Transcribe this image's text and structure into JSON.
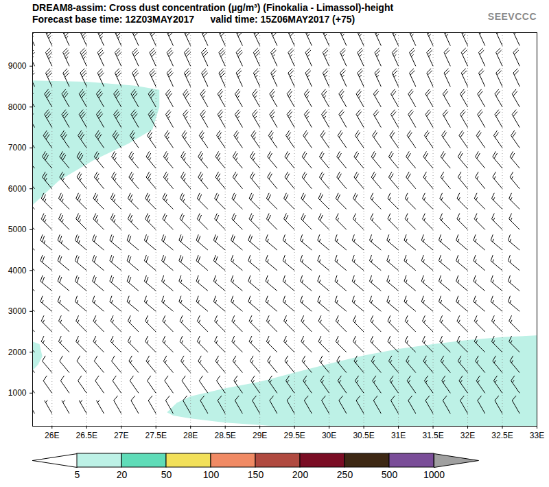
{
  "chart_data": {
    "type": "cross_section",
    "title": "DREAM8-assim: Cross dust concentration (µg/m³) (Finokalia - Limassol)-height",
    "subtitle": "Forecast base time: 12Z03MAY2017      valid time: 15Z06MAY2017 (+75)",
    "logo": "SEEVCCC",
    "xlim": [
      25.72,
      33
    ],
    "ylim": [
      190,
      9820
    ],
    "xticks": [
      {
        "value": 26,
        "label": "26E"
      },
      {
        "value": 26.5,
        "label": "26.5E"
      },
      {
        "value": 27,
        "label": "27E"
      },
      {
        "value": 27.5,
        "label": "27.5E"
      },
      {
        "value": 28,
        "label": "28E"
      },
      {
        "value": 28.5,
        "label": "28.5E"
      },
      {
        "value": 29,
        "label": "29E"
      },
      {
        "value": 29.5,
        "label": "29.5E"
      },
      {
        "value": 30,
        "label": "30E"
      },
      {
        "value": 30.5,
        "label": "30.5E"
      },
      {
        "value": 31,
        "label": "31E"
      },
      {
        "value": 31.5,
        "label": "31.5E"
      },
      {
        "value": 32,
        "label": "32E"
      },
      {
        "value": 32.5,
        "label": "32.5E"
      },
      {
        "value": 33,
        "label": "33E"
      }
    ],
    "yticks": [
      1000,
      2000,
      3000,
      4000,
      5000,
      6000,
      7000,
      8000,
      9000
    ],
    "grid": "x",
    "regions": [
      {
        "level": 5,
        "x": [
          25.6,
          26.5,
          27.2,
          27.55,
          27.55,
          27.45,
          27.1,
          26.6,
          26.1,
          25.72,
          25.6
        ],
        "y": [
          8650,
          8620,
          8520,
          8420,
          8000,
          7450,
          7100,
          6700,
          6200,
          5600,
          5450
        ]
      },
      {
        "level": 5,
        "x": [
          25.6,
          25.72,
          25.82,
          25.86,
          25.8,
          25.72,
          25.6
        ],
        "y": [
          2280,
          2260,
          2200,
          1900,
          1700,
          1550,
          1500
        ]
      },
      {
        "level": 5,
        "x": [
          27.66,
          27.8,
          28,
          28.5,
          29,
          29.5,
          30,
          30.5,
          31,
          31.5,
          32,
          32.5,
          33.1,
          33.1,
          29.5,
          29,
          28.5,
          28,
          27.75
        ],
        "y": [
          530,
          760,
          920,
          1120,
          1280,
          1500,
          1720,
          1920,
          2080,
          2200,
          2300,
          2370,
          2420,
          150,
          150,
          220,
          280,
          380,
          450
        ]
      }
    ],
    "wind": {
      "x": [
        25.75,
        26,
        26.25,
        26.5,
        26.75,
        27,
        27.25,
        27.5,
        27.75,
        28,
        28.25,
        28.5,
        28.75,
        29,
        29.25,
        29.5,
        29.75,
        30,
        30.25,
        30.5,
        30.75,
        31,
        31.25,
        31.5,
        31.75,
        32,
        32.25,
        32.5,
        32.75
      ],
      "heights": [
        500,
        1000,
        1500,
        2000,
        2500,
        3000,
        3500,
        4000,
        4500,
        5000,
        5500,
        6000,
        6500,
        7000,
        7500,
        8000,
        8500,
        9000,
        9500
      ],
      "direction": [
        330,
        325,
        320,
        315,
        315,
        310,
        310,
        310,
        310,
        315,
        315,
        320,
        320,
        325,
        330,
        330,
        335,
        335,
        335
      ],
      "speed": [
        [
          5,
          5,
          5,
          5,
          5,
          10,
          10,
          10,
          10,
          10,
          10,
          10,
          10,
          10,
          10,
          10,
          10,
          10,
          10,
          10,
          10,
          10,
          10,
          10,
          10,
          10,
          10,
          10,
          10
        ],
        [
          10,
          10,
          10,
          10,
          10,
          10,
          10,
          10,
          10,
          10,
          10,
          10,
          15,
          15,
          15,
          15,
          15,
          15,
          15,
          15,
          15,
          15,
          15,
          15,
          15,
          15,
          15,
          15,
          15
        ],
        [
          10,
          10,
          10,
          10,
          10,
          10,
          15,
          15,
          15,
          15,
          15,
          15,
          15,
          15,
          15,
          15,
          15,
          15,
          15,
          15,
          15,
          15,
          15,
          15,
          15,
          15,
          15,
          15,
          15
        ],
        [
          15,
          15,
          15,
          15,
          15,
          15,
          15,
          15,
          15,
          15,
          15,
          15,
          15,
          15,
          15,
          15,
          15,
          15,
          15,
          15,
          15,
          15,
          15,
          15,
          15,
          15,
          15,
          15,
          15
        ],
        [
          15,
          15,
          15,
          15,
          15,
          15,
          15,
          15,
          15,
          15,
          15,
          15,
          15,
          15,
          15,
          15,
          15,
          15,
          15,
          15,
          15,
          15,
          15,
          15,
          15,
          15,
          15,
          15,
          15
        ],
        [
          15,
          15,
          15,
          15,
          15,
          15,
          15,
          15,
          15,
          15,
          15,
          15,
          15,
          15,
          15,
          15,
          15,
          15,
          15,
          15,
          15,
          15,
          15,
          15,
          15,
          15,
          15,
          15,
          15
        ],
        [
          20,
          20,
          20,
          20,
          20,
          20,
          20,
          20,
          15,
          15,
          15,
          15,
          15,
          15,
          15,
          15,
          15,
          15,
          15,
          15,
          15,
          15,
          15,
          15,
          15,
          15,
          15,
          15,
          15
        ],
        [
          20,
          20,
          20,
          20,
          20,
          20,
          20,
          20,
          20,
          20,
          20,
          20,
          15,
          15,
          15,
          15,
          15,
          15,
          15,
          15,
          15,
          15,
          15,
          15,
          15,
          15,
          15,
          15,
          15
        ],
        [
          25,
          25,
          25,
          25,
          20,
          20,
          20,
          20,
          20,
          20,
          20,
          20,
          20,
          20,
          15,
          15,
          15,
          15,
          15,
          15,
          15,
          15,
          15,
          15,
          15,
          15,
          15,
          15,
          15
        ],
        [
          25,
          25,
          25,
          25,
          25,
          25,
          25,
          25,
          20,
          20,
          20,
          20,
          20,
          20,
          20,
          20,
          20,
          20,
          15,
          15,
          15,
          15,
          15,
          15,
          15,
          15,
          15,
          15,
          15
        ],
        [
          25,
          25,
          25,
          25,
          25,
          25,
          25,
          25,
          25,
          25,
          20,
          20,
          20,
          20,
          20,
          20,
          20,
          20,
          20,
          20,
          15,
          15,
          15,
          15,
          15,
          15,
          15,
          15,
          15
        ],
        [
          25,
          25,
          25,
          25,
          25,
          25,
          25,
          25,
          25,
          25,
          25,
          25,
          20,
          20,
          20,
          20,
          20,
          20,
          20,
          20,
          20,
          20,
          20,
          15,
          15,
          15,
          15,
          15,
          15
        ],
        [
          30,
          30,
          30,
          30,
          25,
          25,
          25,
          25,
          25,
          25,
          25,
          25,
          25,
          25,
          20,
          20,
          20,
          20,
          20,
          20,
          20,
          20,
          20,
          20,
          20,
          20,
          20,
          20,
          20
        ],
        [
          30,
          30,
          30,
          30,
          30,
          30,
          25,
          25,
          25,
          25,
          25,
          25,
          25,
          25,
          25,
          25,
          20,
          20,
          20,
          20,
          20,
          20,
          20,
          20,
          20,
          20,
          20,
          20,
          20
        ],
        [
          30,
          30,
          30,
          30,
          30,
          30,
          30,
          30,
          25,
          25,
          25,
          25,
          25,
          25,
          25,
          25,
          25,
          25,
          20,
          20,
          20,
          20,
          20,
          20,
          20,
          20,
          20,
          20,
          20
        ],
        [
          30,
          30,
          30,
          30,
          30,
          30,
          30,
          30,
          30,
          30,
          25,
          25,
          25,
          25,
          25,
          25,
          25,
          25,
          25,
          25,
          20,
          20,
          20,
          20,
          20,
          20,
          20,
          20,
          20
        ],
        [
          30,
          30,
          30,
          30,
          30,
          30,
          30,
          30,
          30,
          30,
          30,
          30,
          25,
          25,
          25,
          25,
          25,
          25,
          25,
          25,
          25,
          25,
          20,
          20,
          20,
          20,
          20,
          20,
          20
        ],
        [
          35,
          35,
          35,
          35,
          30,
          30,
          30,
          30,
          30,
          30,
          30,
          30,
          30,
          30,
          25,
          25,
          25,
          25,
          25,
          25,
          25,
          25,
          25,
          25,
          20,
          20,
          20,
          20,
          20
        ],
        [
          35,
          35,
          35,
          35,
          35,
          35,
          30,
          30,
          30,
          30,
          30,
          30,
          30,
          30,
          30,
          30,
          25,
          25,
          25,
          25,
          25,
          25,
          25,
          25,
          25,
          25,
          20,
          20,
          20
        ]
      ]
    },
    "colorbar": {
      "ticks": [
        5,
        20,
        50,
        100,
        150,
        200,
        250,
        500,
        1000
      ],
      "colors": [
        "#ffffff",
        "#bdf1e6",
        "#5fdcb8",
        "#f2e05a",
        "#f08a64",
        "#b04a40",
        "#7a0d24",
        "#3d2814",
        "#7a4d98",
        "#a0a0a0"
      ]
    }
  }
}
